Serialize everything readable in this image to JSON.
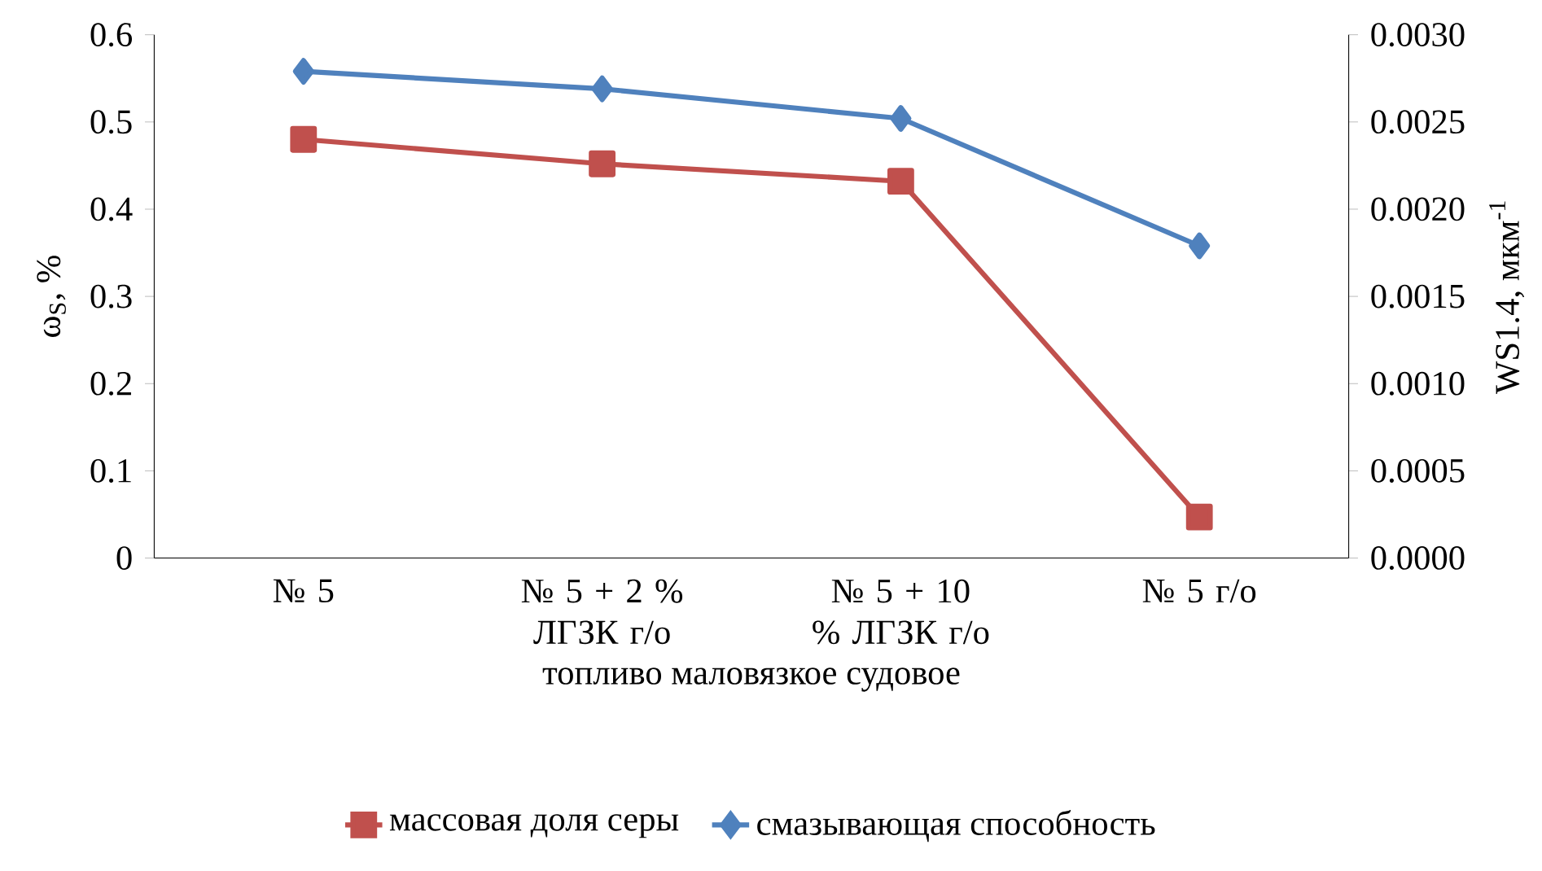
{
  "chart_data": {
    "type": "line",
    "categories": [
      "№ 5",
      "№ 5 + 2 % ЛГЗК г/о",
      "№ 5 + 10 % ЛГЗК г/о",
      "№ 5 г/о"
    ],
    "series": [
      {
        "name": "массовая доля серы",
        "color": "#c0504d",
        "marker": "square",
        "values": [
          0.48,
          0.452,
          0.432,
          0.047
        ]
      },
      {
        "name": "смазывающая способность",
        "color": "#4f81bd",
        "marker": "diamond",
        "axis": "y2",
        "values": [
          0.00279,
          0.00269,
          0.00252,
          0.00179
        ]
      }
    ],
    "xlabel": "топливо маловязкое судовое",
    "ylabel": "ω$_{S}$, %",
    "y2label": "WS1.4, мкм$^{-1}$",
    "ylim": [
      0,
      0.6
    ],
    "yticks": [
      0,
      0.1,
      0.2,
      0.3,
      0.4,
      0.5,
      0.6
    ],
    "y2lim": [
      0,
      0.003
    ],
    "y2ticks": [
      {
        "value": 0,
        "label": "0.0000"
      },
      {
        "value": 0.0005,
        "label": "0.0005"
      },
      {
        "value": 0.001,
        "label": "0.0010"
      },
      {
        "value": 0.0015,
        "label": "0.0015"
      },
      {
        "value": 0.002,
        "label": "0.0020"
      },
      {
        "value": 0.0025,
        "label": "0.0025"
      },
      {
        "value": 0.003,
        "label": "0.0030"
      }
    ],
    "legend": "bottom"
  }
}
